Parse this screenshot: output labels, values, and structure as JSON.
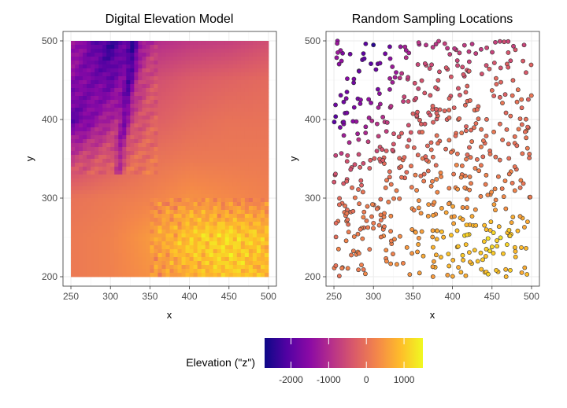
{
  "chart_data": [
    {
      "type": "heatmap",
      "title": "Digital Elevation Model",
      "xlabel": "x",
      "ylabel": "y",
      "xlim": [
        240,
        510
      ],
      "ylim": [
        188,
        512
      ],
      "x_extent": [
        250,
        500
      ],
      "y_extent": [
        200,
        500
      ],
      "x_ticks": [
        250,
        300,
        350,
        400,
        450,
        500
      ],
      "y_ticks": [
        200,
        300,
        400,
        500
      ],
      "grid": true,
      "colormap": "plasma",
      "summary_grid": {
        "x": [
          250,
          300,
          350,
          400,
          450,
          500
        ],
        "y": [
          500,
          450,
          400,
          350,
          300,
          250,
          200
        ],
        "z": [
          [
            -1200,
            -2400,
            -1000,
            -800,
            -700,
            -500
          ],
          [
            -1500,
            -1900,
            -500,
            -300,
            -200,
            -100
          ],
          [
            -2000,
            -1100,
            -300,
            -100,
            0,
            0
          ],
          [
            -700,
            -300,
            0,
            100,
            100,
            100
          ],
          [
            0,
            100,
            200,
            400,
            300,
            200
          ],
          [
            100,
            200,
            500,
            1000,
            1200,
            900
          ],
          [
            100,
            200,
            400,
            700,
            1000,
            800
          ]
        ]
      }
    },
    {
      "type": "scatter",
      "title": "Random Sampling Locations",
      "xlabel": "x",
      "ylabel": "y",
      "xlim": [
        240,
        510
      ],
      "ylim": [
        188,
        512
      ],
      "x_ticks": [
        250,
        300,
        350,
        400,
        450,
        500
      ],
      "y_ticks": [
        200,
        300,
        400,
        500
      ],
      "grid": true,
      "n_points": 600,
      "x_range": [
        250,
        500
      ],
      "y_range": [
        200,
        500
      ]
    }
  ],
  "legend": {
    "title": "Elevation (\"z\")",
    "position": "bottom",
    "range": [
      -2700,
      1500
    ],
    "ticks": [
      -2000,
      -1000,
      0,
      1000
    ],
    "colors": [
      "#0d0887",
      "#5302a3",
      "#8b0aa5",
      "#b83289",
      "#db5c68",
      "#f48849",
      "#febc2a",
      "#f0f921"
    ]
  },
  "colors": {
    "panel_border": "#333333",
    "grid_major": "#ebebeb",
    "grid_minor": "#f5f5f5",
    "point_outline": "#333333"
  }
}
